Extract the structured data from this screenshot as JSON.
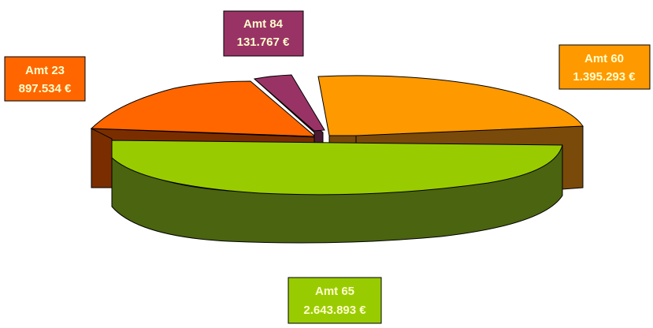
{
  "chart_data": {
    "type": "pie",
    "style": "3d-exploded",
    "slices": [
      {
        "name": "Amt 65",
        "value_text": "2.643.893 €",
        "value": 2643893,
        "color": "#99cc00",
        "side_color": "#4a6410"
      },
      {
        "name": "Amt 60",
        "value_text": "1.395.293 €",
        "value": 1395293,
        "color": "#ff9900",
        "side_color": "#7a4a0a"
      },
      {
        "name": "Amt 23",
        "value_text": "897.534 €",
        "value": 897534,
        "color": "#ff6600",
        "side_color": "#7a2e00"
      },
      {
        "name": "Amt 84",
        "value_text": "131.767 €",
        "value": 131767,
        "color": "#993366",
        "side_color": "#4d1a33"
      }
    ]
  }
}
